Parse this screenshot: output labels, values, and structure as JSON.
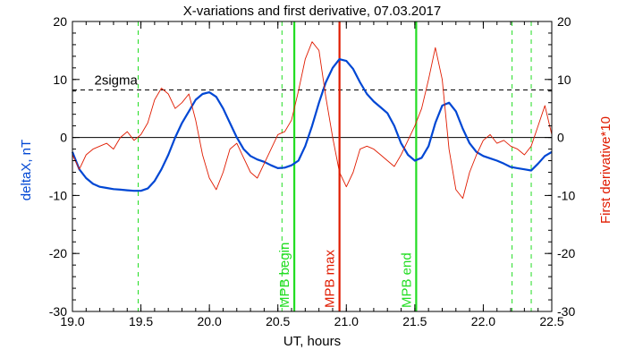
{
  "chart_data": {
    "type": "line",
    "title": "X-variations and first derivative, 07.03.2017",
    "xlabel": "UT, hours",
    "ylabel_left": "deltaX, nT",
    "ylabel_right": "First derivative*10",
    "xlim": [
      19.0,
      22.5
    ],
    "ylim": [
      -30,
      20
    ],
    "x_ticks": [
      "19.0",
      "19.5",
      "20.0",
      "20.5",
      "21.0",
      "21.5",
      "22.0",
      "22.5"
    ],
    "y_ticks": [
      "20",
      "10",
      "0",
      "-10",
      "-20",
      "-30"
    ],
    "threshold": {
      "label": "2sigma",
      "value": 8.2
    },
    "zero_line": 0,
    "colors": {
      "deltaX": "#0047d4",
      "derivative": "#e01b00",
      "mpb_boundary": "#22dd22",
      "mpb_max": "#e01b00",
      "axis": "#000000"
    },
    "markers": [
      {
        "x": 20.62,
        "label": "MPB begin",
        "style": "solid",
        "color_key": "mpb_boundary"
      },
      {
        "x": 20.95,
        "label": "MPB max",
        "style": "solid",
        "color_key": "mpb_max"
      },
      {
        "x": 21.51,
        "label": "MPB end",
        "style": "solid",
        "color_key": "mpb_boundary"
      }
    ],
    "dashed_markers": [
      19.48,
      20.53,
      22.21,
      22.35
    ],
    "series": [
      {
        "key": "deltaX",
        "x": [
          19.0,
          19.05,
          19.1,
          19.15,
          19.2,
          19.25,
          19.3,
          19.35,
          19.4,
          19.45,
          19.5,
          19.55,
          19.6,
          19.65,
          19.7,
          19.75,
          19.8,
          19.85,
          19.9,
          19.95,
          20.0,
          20.05,
          20.1,
          20.15,
          20.2,
          20.25,
          20.3,
          20.35,
          20.4,
          20.45,
          20.5,
          20.55,
          20.6,
          20.65,
          20.7,
          20.75,
          20.8,
          20.85,
          20.9,
          20.95,
          21.0,
          21.05,
          21.1,
          21.15,
          21.2,
          21.25,
          21.3,
          21.35,
          21.4,
          21.45,
          21.5,
          21.55,
          21.6,
          21.65,
          21.7,
          21.75,
          21.8,
          21.85,
          21.9,
          21.95,
          22.0,
          22.05,
          22.1,
          22.15,
          22.2,
          22.25,
          22.3,
          22.35,
          22.4,
          22.45,
          22.5
        ],
        "y": [
          -2.5,
          -5.5,
          -7.0,
          -8.0,
          -8.5,
          -8.7,
          -8.9,
          -9.0,
          -9.1,
          -9.2,
          -9.2,
          -8.8,
          -7.5,
          -5.5,
          -3.0,
          0.0,
          2.5,
          4.5,
          6.5,
          7.5,
          7.8,
          7.0,
          5.0,
          2.5,
          0.0,
          -2.0,
          -3.2,
          -3.8,
          -4.2,
          -4.8,
          -5.3,
          -5.2,
          -4.8,
          -4.0,
          -1.5,
          2.0,
          6.0,
          9.5,
          12.0,
          13.5,
          13.2,
          11.8,
          9.5,
          7.5,
          6.2,
          5.2,
          4.2,
          2.0,
          -1.0,
          -3.0,
          -4.0,
          -3.5,
          -1.5,
          2.5,
          5.5,
          6.0,
          4.5,
          1.5,
          -1.0,
          -2.5,
          -3.2,
          -3.6,
          -4.0,
          -4.5,
          -5.1,
          -5.3,
          -5.5,
          -5.7,
          -4.5,
          -3.2,
          -2.5
        ]
      },
      {
        "key": "derivative",
        "x": [
          19.0,
          19.05,
          19.1,
          19.15,
          19.2,
          19.25,
          19.3,
          19.35,
          19.4,
          19.45,
          19.5,
          19.55,
          19.6,
          19.65,
          19.7,
          19.75,
          19.8,
          19.85,
          19.9,
          19.95,
          20.0,
          20.05,
          20.1,
          20.15,
          20.2,
          20.25,
          20.3,
          20.35,
          20.4,
          20.45,
          20.5,
          20.55,
          20.6,
          20.65,
          20.7,
          20.75,
          20.8,
          20.85,
          20.9,
          20.95,
          21.0,
          21.05,
          21.1,
          21.15,
          21.2,
          21.25,
          21.3,
          21.35,
          21.4,
          21.45,
          21.5,
          21.55,
          21.6,
          21.65,
          21.7,
          21.75,
          21.8,
          21.85,
          21.9,
          21.95,
          22.0,
          22.05,
          22.1,
          22.15,
          22.2,
          22.25,
          22.3,
          22.35,
          22.4,
          22.45,
          22.5
        ],
        "y": [
          -3.0,
          -5.5,
          -3.0,
          -2.0,
          -1.5,
          -1.0,
          -2.0,
          0.0,
          1.0,
          -0.5,
          0.5,
          2.5,
          6.5,
          8.5,
          7.5,
          5.0,
          6.0,
          7.5,
          3.0,
          -3.0,
          -7.0,
          -9.0,
          -6.0,
          -2.0,
          -1.0,
          -3.5,
          -6.0,
          -7.0,
          -4.5,
          -2.0,
          0.5,
          1.0,
          3.0,
          8.0,
          13.5,
          16.5,
          15.0,
          7.0,
          0.0,
          -6.0,
          -8.5,
          -6.0,
          -2.0,
          -1.5,
          -2.0,
          -3.0,
          -4.0,
          -5.0,
          -3.0,
          -0.5,
          2.0,
          5.0,
          10.0,
          15.5,
          10.0,
          -2.0,
          -9.0,
          -10.5,
          -6.0,
          -3.0,
          -0.5,
          0.5,
          -1.0,
          -0.5,
          -1.5,
          -2.0,
          -3.0,
          -1.5,
          2.0,
          5.5,
          0.5
        ]
      }
    ]
  }
}
